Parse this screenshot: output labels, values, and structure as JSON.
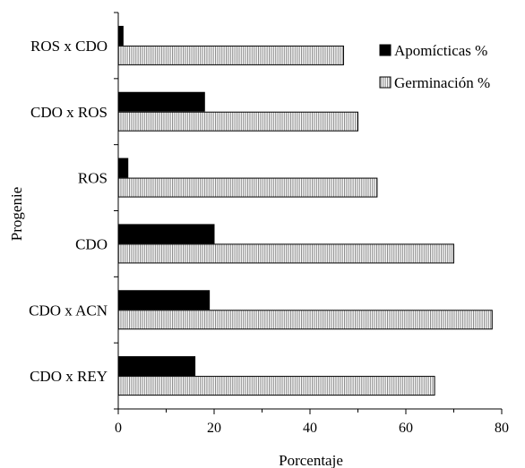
{
  "chart_data": {
    "type": "bar",
    "orientation": "horizontal",
    "categories": [
      "ROS x CDO",
      "CDO x ROS",
      "ROS",
      "CDO",
      "CDO x ACN",
      "CDO x REY"
    ],
    "series": [
      {
        "name": "Apomícticas %",
        "values": [
          1,
          18,
          2,
          20,
          19,
          16
        ],
        "color": "#000000",
        "fill": "solid"
      },
      {
        "name": "Germinación %",
        "values": [
          47,
          50,
          54,
          70,
          78,
          66
        ],
        "color": "#9a9a9a",
        "fill": "vertical-stripes"
      }
    ],
    "xlabel": "Porcentaje",
    "ylabel": "Progenie",
    "xlim": [
      0,
      80
    ],
    "xticks": [
      "0",
      "20",
      "40",
      "60",
      "80"
    ],
    "grid": false,
    "legend_position": "top-right"
  }
}
